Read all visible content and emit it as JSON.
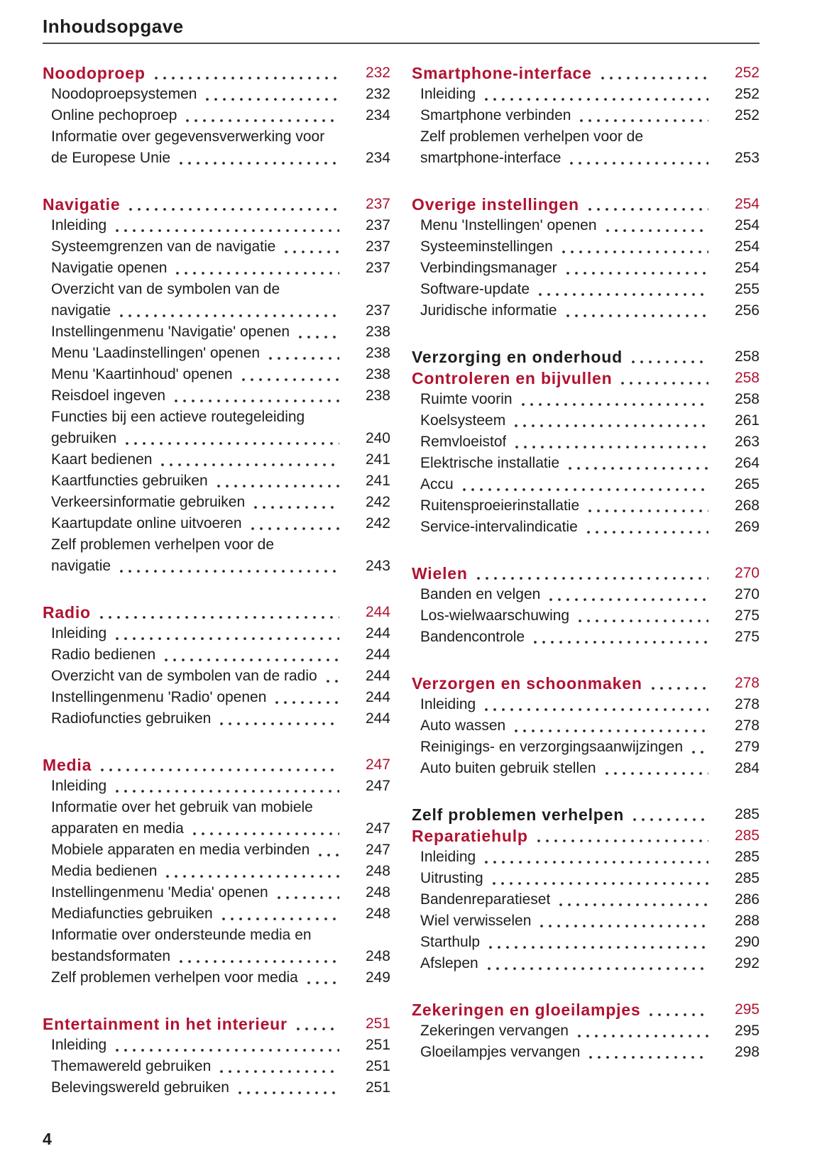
{
  "page": {
    "title": "Inhoudsopgave",
    "page_number": "4"
  },
  "colors": {
    "accent_red": "#b01231",
    "text": "#1d1d1b",
    "dot_leader": "#2a2a2a",
    "rule": "#4d4d4d"
  },
  "toc": {
    "columns": [
      {
        "groups": [
          {
            "items": [
              {
                "type": "h",
                "label": "Noodoproep",
                "page": "232"
              },
              {
                "type": "e",
                "label": "Noodoproepsystemen",
                "page": "232"
              },
              {
                "type": "e",
                "label": "Online pechoproep",
                "page": "234"
              },
              {
                "type": "e",
                "pre": [
                  "Informatie over gegevensverwerking voor"
                ],
                "label": "de Europese Unie",
                "page": "234"
              }
            ]
          },
          {
            "items": [
              {
                "type": "h",
                "label": "Navigatie",
                "page": "237"
              },
              {
                "type": "e",
                "label": "Inleiding",
                "page": "237"
              },
              {
                "type": "e",
                "label": "Systeemgrenzen van de navigatie",
                "page": "237"
              },
              {
                "type": "e",
                "label": "Navigatie openen",
                "page": "237"
              },
              {
                "type": "e",
                "pre": [
                  "Overzicht van de symbolen van de"
                ],
                "label": "navigatie",
                "page": "237"
              },
              {
                "type": "e",
                "label": "Instellingenmenu 'Navigatie' openen",
                "page": "238"
              },
              {
                "type": "e",
                "label": "Menu 'Laadinstellingen' openen",
                "page": "238"
              },
              {
                "type": "e",
                "label": "Menu 'Kaartinhoud' openen",
                "page": "238"
              },
              {
                "type": "e",
                "label": "Reisdoel ingeven",
                "page": "238"
              },
              {
                "type": "e",
                "pre": [
                  "Functies bij een actieve routegeleiding"
                ],
                "label": "gebruiken",
                "page": "240"
              },
              {
                "type": "e",
                "label": "Kaart bedienen",
                "page": "241"
              },
              {
                "type": "e",
                "label": "Kaartfuncties gebruiken",
                "page": "241"
              },
              {
                "type": "e",
                "label": "Verkeersinformatie gebruiken",
                "page": "242"
              },
              {
                "type": "e",
                "label": "Kaartupdate online uitvoeren",
                "page": "242"
              },
              {
                "type": "e",
                "pre": [
                  "Zelf problemen verhelpen voor de"
                ],
                "label": "navigatie",
                "page": "243"
              }
            ]
          },
          {
            "items": [
              {
                "type": "h",
                "label": "Radio",
                "page": "244"
              },
              {
                "type": "e",
                "label": "Inleiding",
                "page": "244"
              },
              {
                "type": "e",
                "label": "Radio bedienen",
                "page": "244"
              },
              {
                "type": "e",
                "label": "Overzicht van de symbolen van de radio",
                "page": "244"
              },
              {
                "type": "e",
                "label": "Instellingenmenu 'Radio' openen",
                "page": "244"
              },
              {
                "type": "e",
                "label": "Radiofuncties gebruiken",
                "page": "244"
              }
            ]
          },
          {
            "items": [
              {
                "type": "h",
                "label": "Media",
                "page": "247"
              },
              {
                "type": "e",
                "label": "Inleiding",
                "page": "247"
              },
              {
                "type": "e",
                "pre": [
                  "Informatie over het gebruik van mobiele"
                ],
                "label": "apparaten en media",
                "page": "247"
              },
              {
                "type": "e",
                "label": "Mobiele apparaten en media verbinden",
                "page": "247"
              },
              {
                "type": "e",
                "label": "Media bedienen",
                "page": "248"
              },
              {
                "type": "e",
                "label": "Instellingenmenu 'Media' openen",
                "page": "248"
              },
              {
                "type": "e",
                "label": "Mediafuncties gebruiken",
                "page": "248"
              },
              {
                "type": "e",
                "pre": [
                  "Informatie over ondersteunde media en"
                ],
                "label": "bestandsformaten",
                "page": "248"
              },
              {
                "type": "e",
                "label": "Zelf problemen verhelpen voor media",
                "page": "249"
              }
            ]
          },
          {
            "items": [
              {
                "type": "h",
                "label": "Entertainment in het interieur",
                "page": "251"
              },
              {
                "type": "e",
                "label": "Inleiding",
                "page": "251"
              },
              {
                "type": "e",
                "label": "Themawereld gebruiken",
                "page": "251"
              },
              {
                "type": "e",
                "label": "Belevingswereld gebruiken",
                "page": "251"
              }
            ]
          }
        ]
      },
      {
        "groups": [
          {
            "items": [
              {
                "type": "h",
                "label": "Smartphone-interface",
                "page": "252"
              },
              {
                "type": "e",
                "label": "Inleiding",
                "page": "252"
              },
              {
                "type": "e",
                "label": "Smartphone verbinden",
                "page": "252"
              },
              {
                "type": "e",
                "pre": [
                  "Zelf problemen verhelpen voor de"
                ],
                "label": "smartphone-interface",
                "page": "253"
              }
            ]
          },
          {
            "items": [
              {
                "type": "h",
                "label": "Overige instellingen",
                "page": "254"
              },
              {
                "type": "e",
                "label": "Menu 'Instellingen' openen",
                "page": "254"
              },
              {
                "type": "e",
                "label": "Systeeminstellingen",
                "page": "254"
              },
              {
                "type": "e",
                "label": "Verbindingsmanager",
                "page": "254"
              },
              {
                "type": "e",
                "label": "Software-update",
                "page": "255"
              },
              {
                "type": "e",
                "label": "Juridische informatie",
                "page": "256"
              }
            ]
          },
          {
            "items": [
              {
                "type": "hb",
                "label": "Verzorging en onderhoud",
                "page": "258"
              },
              {
                "type": "h",
                "label": "Controleren en bijvullen",
                "page": "258"
              },
              {
                "type": "e",
                "label": "Ruimte voorin",
                "page": "258"
              },
              {
                "type": "e",
                "label": "Koelsysteem",
                "page": "261"
              },
              {
                "type": "e",
                "label": "Remvloeistof",
                "page": "263"
              },
              {
                "type": "e",
                "label": "Elektrische installatie",
                "page": "264"
              },
              {
                "type": "e",
                "label": "Accu",
                "page": "265"
              },
              {
                "type": "e",
                "label": "Ruitensproeierinstallatie",
                "page": "268"
              },
              {
                "type": "e",
                "label": "Service-intervalindicatie",
                "page": "269"
              }
            ]
          },
          {
            "items": [
              {
                "type": "h",
                "label": "Wielen",
                "page": "270"
              },
              {
                "type": "e",
                "label": "Banden en velgen",
                "page": "270"
              },
              {
                "type": "e",
                "label": "Los-wielwaarschuwing",
                "page": "275"
              },
              {
                "type": "e",
                "label": "Bandencontrole",
                "page": "275"
              }
            ]
          },
          {
            "items": [
              {
                "type": "h",
                "label": "Verzorgen en schoonmaken",
                "page": "278"
              },
              {
                "type": "e",
                "label": "Inleiding",
                "page": "278"
              },
              {
                "type": "e",
                "label": "Auto wassen",
                "page": "278"
              },
              {
                "type": "e",
                "label": "Reinigings- en verzorgingsaanwijzingen",
                "page": "279"
              },
              {
                "type": "e",
                "label": "Auto buiten gebruik stellen",
                "page": "284"
              }
            ]
          },
          {
            "items": [
              {
                "type": "hb",
                "label": "Zelf problemen verhelpen",
                "page": "285"
              },
              {
                "type": "h",
                "label": "Reparatiehulp",
                "page": "285"
              },
              {
                "type": "e",
                "label": "Inleiding",
                "page": "285"
              },
              {
                "type": "e",
                "label": "Uitrusting",
                "page": "285"
              },
              {
                "type": "e",
                "label": "Bandenreparatieset",
                "page": "286"
              },
              {
                "type": "e",
                "label": "Wiel verwisselen",
                "page": "288"
              },
              {
                "type": "e",
                "label": "Starthulp",
                "page": "290"
              },
              {
                "type": "e",
                "label": "Afslepen",
                "page": "292"
              }
            ]
          },
          {
            "items": [
              {
                "type": "h",
                "label": "Zekeringen en gloeilampjes",
                "page": "295"
              },
              {
                "type": "e",
                "label": "Zekeringen vervangen",
                "page": "295"
              },
              {
                "type": "e",
                "label": "Gloeilampjes vervangen",
                "page": "298"
              }
            ]
          }
        ]
      }
    ]
  }
}
